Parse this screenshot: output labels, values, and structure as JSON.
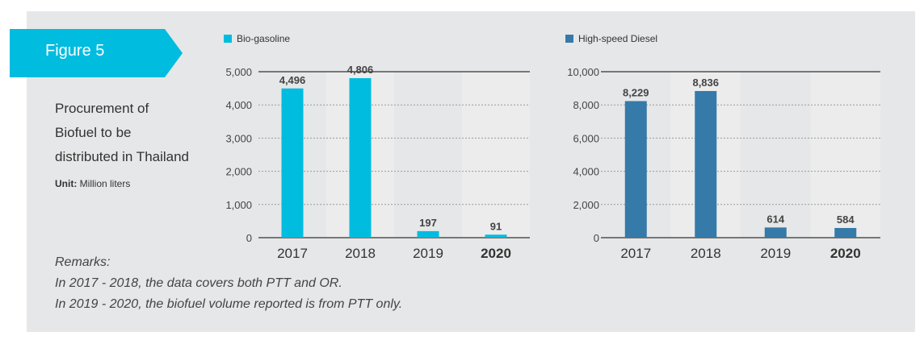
{
  "figure": {
    "label": "Figure 5",
    "title_lines": [
      "Procurement of",
      "Biofuel to be",
      "distributed in Thailand"
    ],
    "unit_label": "Unit:",
    "unit_value": "Million liters"
  },
  "colors": {
    "panel": "#e6e7e8",
    "tab": "#00bcdf",
    "bio": "#00bcdf",
    "diesel": "#357aa8",
    "shade": "#ececed",
    "axis": "#333333"
  },
  "chart_data": [
    {
      "type": "bar",
      "series": [
        {
          "name": "Bio-gasoline",
          "values": [
            4496,
            4806,
            197,
            91
          ]
        }
      ],
      "categories": [
        "2017",
        "2018",
        "2019",
        "2020"
      ],
      "value_labels": [
        "4,496",
        "4,806",
        "197",
        "91"
      ],
      "yticks": [
        0,
        1000,
        2000,
        3000,
        4000,
        5000
      ],
      "ytick_labels": [
        "0",
        "1,000",
        "2,000",
        "3,000",
        "4,000",
        "5,000"
      ],
      "ylim": [
        0,
        5000
      ],
      "legend": "top-left",
      "grid": true
    },
    {
      "type": "bar",
      "series": [
        {
          "name": "High-speed Diesel",
          "values": [
            8229,
            8836,
            614,
            584
          ]
        }
      ],
      "categories": [
        "2017",
        "2018",
        "2019",
        "2020"
      ],
      "value_labels": [
        "8,229",
        "8,836",
        "614",
        "584"
      ],
      "yticks": [
        0,
        2000,
        4000,
        6000,
        8000,
        10000
      ],
      "ytick_labels": [
        "0",
        "2,000",
        "4,000",
        "6,000",
        "8,000",
        "10,000"
      ],
      "ylim": [
        0,
        10000
      ],
      "legend": "top-left",
      "grid": true
    }
  ],
  "remarks": {
    "title": "Remarks:",
    "lines": [
      "In 2017 - 2018, the data covers both PTT and OR.",
      "In 2019 - 2020, the biofuel volume reported is from PTT only."
    ]
  }
}
